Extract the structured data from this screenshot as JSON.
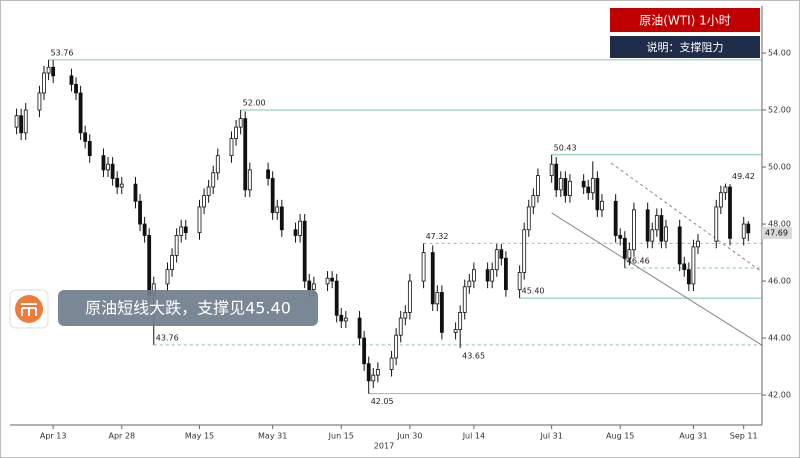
{
  "chart_data": {
    "type": "candlestick",
    "title": "原油(WTI)  1小时",
    "subtitle": "说明：支撑阻力",
    "caption": "原油短线大跌，支撑见45.40",
    "year_label": "2017",
    "color": "#111111",
    "xlim": [
      "2017-04-04",
      "2017-09-15"
    ],
    "ylim": [
      40.95,
      55.58
    ],
    "yticks": [
      {
        "value": 42,
        "label": "42.00"
      },
      {
        "value": 44,
        "label": "44.00"
      },
      {
        "value": 46,
        "label": "46.00"
      },
      {
        "value": 48,
        "label": "48.00"
      },
      {
        "value": 50,
        "label": "50.00"
      },
      {
        "value": 52,
        "label": "52.00"
      },
      {
        "value": 54,
        "label": "54.00"
      }
    ],
    "xticks": [
      {
        "value": "2017-04-13",
        "label": "Apr 13"
      },
      {
        "value": "2017-04-28",
        "label": "Apr 28"
      },
      {
        "value": "2017-05-15",
        "label": "May 15"
      },
      {
        "value": "2017-05-31",
        "label": "May 31"
      },
      {
        "value": "2017-06-15",
        "label": "Jun 15"
      },
      {
        "value": "2017-06-30",
        "label": "Jun 30"
      },
      {
        "value": "2017-07-14",
        "label": "Jul 14"
      },
      {
        "value": "2017-07-31",
        "label": "Jul 31"
      },
      {
        "value": "2017-08-15",
        "label": "Aug 15"
      },
      {
        "value": "2017-08-31",
        "label": "Aug 31"
      },
      {
        "value": "2017-09-11",
        "label": "Sep 11"
      }
    ],
    "x": [
      "2017-04-05",
      "2017-04-06",
      "2017-04-07",
      "2017-04-10",
      "2017-04-11",
      "2017-04-12",
      "2017-04-13",
      "2017-04-17",
      "2017-04-18",
      "2017-04-19",
      "2017-04-20",
      "2017-04-21",
      "2017-04-24",
      "2017-04-25",
      "2017-04-26",
      "2017-04-27",
      "2017-04-28",
      "2017-05-01",
      "2017-05-02",
      "2017-05-03",
      "2017-05-04",
      "2017-05-05",
      "2017-05-08",
      "2017-05-09",
      "2017-05-10",
      "2017-05-11",
      "2017-05-12",
      "2017-05-15",
      "2017-05-16",
      "2017-05-17",
      "2017-05-18",
      "2017-05-19",
      "2017-05-22",
      "2017-05-23",
      "2017-05-24",
      "2017-05-25",
      "2017-05-26",
      "2017-05-30",
      "2017-05-31",
      "2017-06-01",
      "2017-06-02",
      "2017-06-05",
      "2017-06-06",
      "2017-06-07",
      "2017-06-08",
      "2017-06-09",
      "2017-06-12",
      "2017-06-13",
      "2017-06-14",
      "2017-06-15",
      "2017-06-16",
      "2017-06-19",
      "2017-06-20",
      "2017-06-21",
      "2017-06-22",
      "2017-06-23",
      "2017-06-26",
      "2017-06-27",
      "2017-06-28",
      "2017-06-29",
      "2017-06-30",
      "2017-07-03",
      "2017-07-05",
      "2017-07-06",
      "2017-07-07",
      "2017-07-10",
      "2017-07-11",
      "2017-07-12",
      "2017-07-13",
      "2017-07-14",
      "2017-07-17",
      "2017-07-18",
      "2017-07-19",
      "2017-07-20",
      "2017-07-21",
      "2017-07-24",
      "2017-07-25",
      "2017-07-26",
      "2017-07-27",
      "2017-07-28",
      "2017-07-31",
      "2017-08-01",
      "2017-08-02",
      "2017-08-03",
      "2017-08-04",
      "2017-08-07",
      "2017-08-08",
      "2017-08-09",
      "2017-08-10",
      "2017-08-11",
      "2017-08-14",
      "2017-08-15",
      "2017-08-16",
      "2017-08-17",
      "2017-08-18",
      "2017-08-21",
      "2017-08-22",
      "2017-08-23",
      "2017-08-24",
      "2017-08-25",
      "2017-08-28",
      "2017-08-29",
      "2017-08-30",
      "2017-08-31",
      "2017-09-01",
      "2017-09-05",
      "2017-09-06",
      "2017-09-07",
      "2017-09-08",
      "2017-09-11",
      "2017-09-12"
    ],
    "open": [
      51.4,
      51.8,
      51.2,
      52.0,
      52.6,
      53.3,
      53.5,
      53.2,
      52.9,
      52.6,
      51.2,
      50.9,
      50.4,
      49.9,
      50.1,
      49.6,
      49.3,
      49.4,
      48.8,
      48.0,
      47.6,
      45.5,
      45.9,
      46.4,
      46.9,
      47.6,
      47.9,
      47.7,
      48.6,
      49.0,
      49.3,
      49.8,
      50.4,
      51.0,
      51.4,
      51.7,
      49.2,
      49.9,
      49.6,
      48.4,
      48.6,
      47.8,
      47.6,
      48.1,
      46.0,
      45.7,
      45.9,
      46.1,
      46.0,
      44.8,
      44.6,
      44.7,
      44.0,
      43.1,
      42.5,
      42.7,
      42.9,
      43.3,
      44.1,
      44.7,
      44.9,
      46.0,
      47.0,
      45.2,
      45.6,
      44.2,
      44.3,
      44.9,
      45.8,
      46.0,
      46.4,
      46.0,
      46.4,
      47.1,
      46.8,
      45.7,
      46.3,
      47.8,
      48.6,
      49.0,
      49.7,
      50.1,
      49.2,
      49.6,
      49.0,
      49.5,
      49.3,
      49.1,
      49.6,
      48.5,
      48.8,
      47.6,
      47.5,
      46.8,
      47.1,
      48.5,
      47.4,
      47.8,
      48.3,
      47.4,
      47.9,
      46.6,
      46.4,
      45.9,
      47.2,
      47.4,
      48.6,
      49.1,
      49.3,
      47.5,
      48.0
    ],
    "high": [
      52.05,
      52.05,
      52.25,
      52.85,
      53.55,
      53.76,
      53.75,
      53.45,
      53.15,
      52.85,
      51.45,
      51.15,
      50.65,
      50.35,
      50.35,
      49.85,
      49.65,
      49.65,
      49.05,
      48.25,
      47.85,
      46.15,
      46.65,
      47.15,
      47.85,
      48.15,
      48.15,
      48.85,
      49.25,
      49.55,
      50.05,
      50.65,
      51.25,
      51.65,
      52.0,
      51.95,
      50.15,
      50.15,
      49.85,
      48.85,
      48.85,
      48.05,
      48.35,
      48.35,
      46.25,
      46.15,
      46.35,
      46.35,
      46.25,
      45.05,
      44.95,
      44.95,
      44.25,
      43.35,
      42.95,
      43.15,
      43.55,
      44.35,
      44.95,
      45.15,
      46.25,
      47.32,
      47.25,
      45.85,
      45.85,
      44.55,
      45.15,
      46.05,
      46.25,
      46.65,
      46.65,
      46.65,
      47.3,
      47.3,
      47.05,
      46.55,
      48.05,
      48.85,
      49.25,
      49.95,
      50.43,
      50.35,
      49.85,
      49.85,
      49.75,
      49.75,
      49.55,
      50.2,
      49.85,
      49.05,
      49.05,
      47.85,
      47.75,
      47.35,
      48.75,
      48.75,
      48.05,
      48.55,
      48.55,
      48.15,
      48.15,
      46.85,
      46.65,
      47.45,
      47.65,
      48.85,
      49.35,
      49.42,
      49.4,
      48.25,
      48.1
    ],
    "low": [
      51.15,
      50.95,
      50.95,
      51.75,
      52.35,
      53.05,
      52.95,
      52.65,
      52.35,
      50.95,
      50.65,
      50.15,
      49.65,
      49.65,
      49.35,
      49.05,
      49.05,
      48.55,
      47.75,
      47.35,
      45.25,
      43.76,
      45.65,
      46.15,
      46.65,
      47.35,
      47.45,
      47.45,
      48.35,
      48.75,
      49.05,
      49.55,
      50.15,
      50.75,
      51.15,
      48.95,
      48.95,
      49.35,
      48.15,
      48.15,
      47.55,
      47.35,
      47.35,
      45.75,
      45.45,
      45.45,
      45.65,
      45.75,
      44.55,
      44.35,
      44.35,
      43.75,
      42.85,
      42.05,
      42.25,
      42.45,
      42.65,
      43.05,
      43.85,
      44.45,
      44.65,
      45.75,
      44.95,
      44.95,
      43.95,
      43.95,
      43.65,
      44.65,
      45.55,
      45.75,
      45.75,
      45.75,
      46.15,
      46.55,
      45.45,
      45.4,
      46.05,
      47.55,
      48.35,
      48.75,
      49.45,
      48.95,
      48.95,
      48.75,
      48.75,
      49.05,
      48.85,
      48.85,
      48.25,
      48.25,
      47.35,
      47.25,
      46.46,
      46.55,
      46.85,
      47.15,
      47.15,
      47.55,
      47.15,
      47.15,
      46.35,
      46.15,
      45.65,
      45.65,
      46.95,
      47.15,
      48.35,
      48.85,
      47.25,
      47.25,
      47.4
    ],
    "close": [
      51.8,
      51.2,
      52.0,
      52.6,
      53.3,
      53.5,
      53.2,
      52.9,
      52.6,
      51.2,
      50.9,
      50.4,
      49.9,
      50.1,
      49.6,
      49.3,
      49.4,
      48.8,
      48.0,
      47.6,
      45.5,
      45.9,
      46.4,
      46.9,
      47.6,
      47.9,
      47.7,
      48.6,
      49.0,
      49.3,
      49.8,
      50.4,
      51.0,
      51.4,
      51.7,
      49.2,
      49.9,
      49.6,
      48.4,
      48.6,
      47.8,
      47.6,
      48.1,
      46.0,
      45.7,
      45.9,
      46.1,
      46.0,
      44.8,
      44.6,
      44.7,
      44.0,
      43.1,
      42.5,
      42.7,
      42.9,
      43.3,
      44.1,
      44.7,
      44.9,
      46.0,
      47.0,
      45.2,
      45.6,
      44.2,
      44.3,
      44.9,
      45.8,
      46.0,
      46.4,
      46.0,
      46.4,
      47.1,
      46.8,
      45.7,
      46.3,
      47.8,
      48.6,
      49.0,
      49.7,
      50.1,
      49.2,
      49.6,
      49.0,
      49.5,
      49.3,
      49.1,
      49.6,
      48.5,
      48.8,
      47.6,
      47.5,
      46.8,
      47.1,
      48.5,
      47.4,
      47.8,
      48.3,
      47.4,
      47.9,
      46.6,
      46.4,
      45.9,
      47.2,
      47.4,
      48.6,
      49.1,
      49.3,
      47.5,
      48.0,
      47.69
    ],
    "last": 47.69,
    "levels": [
      {
        "x": "2017-04-12",
        "value": 53.76,
        "label": "53.76",
        "style": "solid",
        "anchor": "above"
      },
      {
        "x": "2017-05-24",
        "value": 52,
        "label": "52.00",
        "style": "solid",
        "anchor": "above"
      },
      {
        "x": "2017-07-31",
        "value": 50.43,
        "label": "50.43",
        "style": "solid",
        "anchor": "above"
      },
      {
        "x": "2017-07-03",
        "value": 47.32,
        "label": "47.32",
        "style": "dashed",
        "anchor": "above"
      },
      {
        "x": "2017-08-16",
        "value": 46.46,
        "label": "46.46",
        "style": "dashed",
        "anchor": "above"
      },
      {
        "x": "2017-07-24",
        "value": 45.4,
        "label": "45.40",
        "style": "solid",
        "anchor": "above"
      },
      {
        "x": "2017-05-05",
        "value": 43.76,
        "label": "43.76",
        "style": "dashed",
        "anchor": "above"
      },
      {
        "x": "2017-07-11",
        "value": 43.65,
        "label": "43.65",
        "style": "none",
        "anchor": "below"
      },
      {
        "x": "2017-06-21",
        "value": 42.05,
        "label": "42.05",
        "style": "solid",
        "anchor": "below"
      },
      {
        "x": "2017-09-08",
        "value": 49.42,
        "label": "49.42",
        "style": "none",
        "anchor": "above"
      }
    ],
    "level_color": "#7cc6b3",
    "trendlines": [
      {
        "x": [
          "2017-07-31",
          "2017-09-15"
        ],
        "y": [
          48.39,
          43.75
        ],
        "style": "solid"
      },
      {
        "x": [
          "2017-08-13",
          "2017-09-15"
        ],
        "y": [
          50.14,
          46.32
        ],
        "style": "dashed"
      }
    ],
    "trend_color": "#888888"
  }
}
